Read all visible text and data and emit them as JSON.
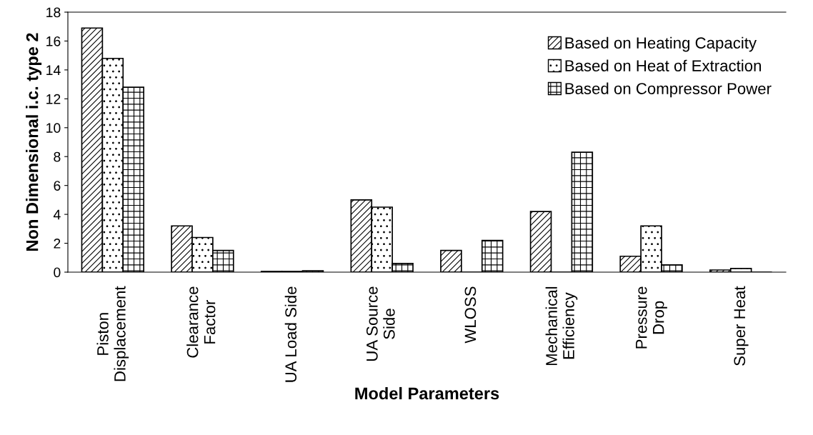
{
  "chart_data": {
    "type": "bar",
    "xlabel": "Model Parameters",
    "ylabel": "Non Dimensional i.c. type 2",
    "categories": [
      "Piston\nDisplacement",
      "Clearance\nFactor",
      "UA Load Side",
      "UA Source\nSide",
      "WLOSS",
      "Mechanical\nEfficiency",
      "Pressure\nDrop",
      "Super Heat"
    ],
    "series": [
      {
        "name": "Based on Heating Capacity",
        "color": "#000000",
        "values": [
          16.9,
          3.2,
          0.05,
          5.0,
          1.5,
          4.2,
          1.1,
          0.15
        ]
      },
      {
        "name": "Based on Heat of Extraction",
        "color": "#000000",
        "values": [
          14.8,
          2.4,
          0.05,
          4.5,
          0,
          0,
          3.2,
          0.25
        ]
      },
      {
        "name": "Based on Compressor Power",
        "color": "#000000",
        "values": [
          12.8,
          1.5,
          0.1,
          0.6,
          2.2,
          8.3,
          0.5,
          0
        ]
      }
    ],
    "ylim": [
      0,
      18
    ],
    "yticks": [
      0,
      2,
      4,
      6,
      8,
      10,
      12,
      14,
      16,
      18
    ],
    "grid": false,
    "legend": "top right"
  }
}
